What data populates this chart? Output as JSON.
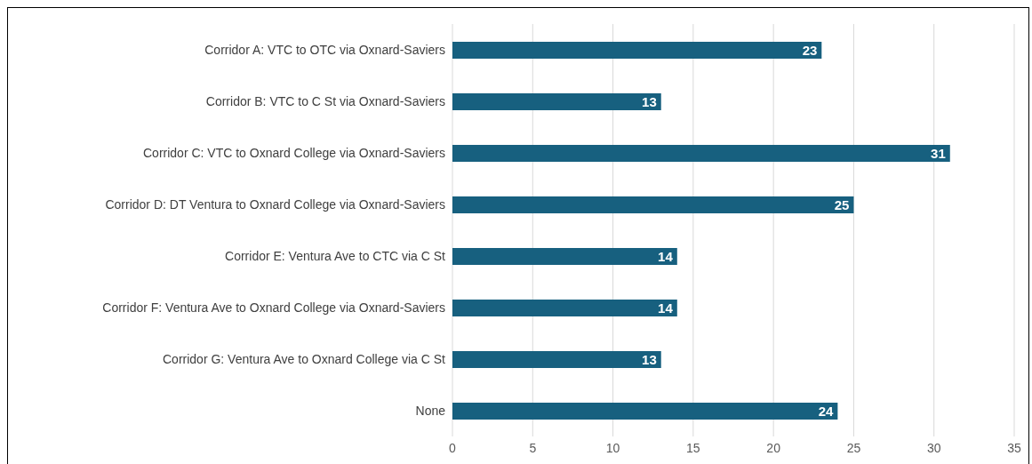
{
  "chart_data": {
    "type": "bar",
    "orientation": "horizontal",
    "categories": [
      "Corridor A: VTC to OTC via Oxnard-Saviers",
      "Corridor B: VTC to C St via Oxnard-Saviers",
      "Corridor C: VTC to Oxnard College via Oxnard-Saviers",
      "Corridor D: DT Ventura to Oxnard College via Oxnard-Saviers",
      "Corridor E: Ventura Ave to CTC via C St",
      "Corridor F: Ventura Ave to Oxnard College via Oxnard-Saviers",
      "Corridor G: Ventura Ave to Oxnard College via C St",
      "None"
    ],
    "values": [
      23,
      13,
      31,
      25,
      14,
      14,
      13,
      24
    ],
    "color": "#17607f",
    "xlim": [
      0,
      35
    ],
    "xticks": [
      0,
      5,
      10,
      15,
      20,
      25,
      30,
      35
    ],
    "grid": "x",
    "data_labels": true
  }
}
